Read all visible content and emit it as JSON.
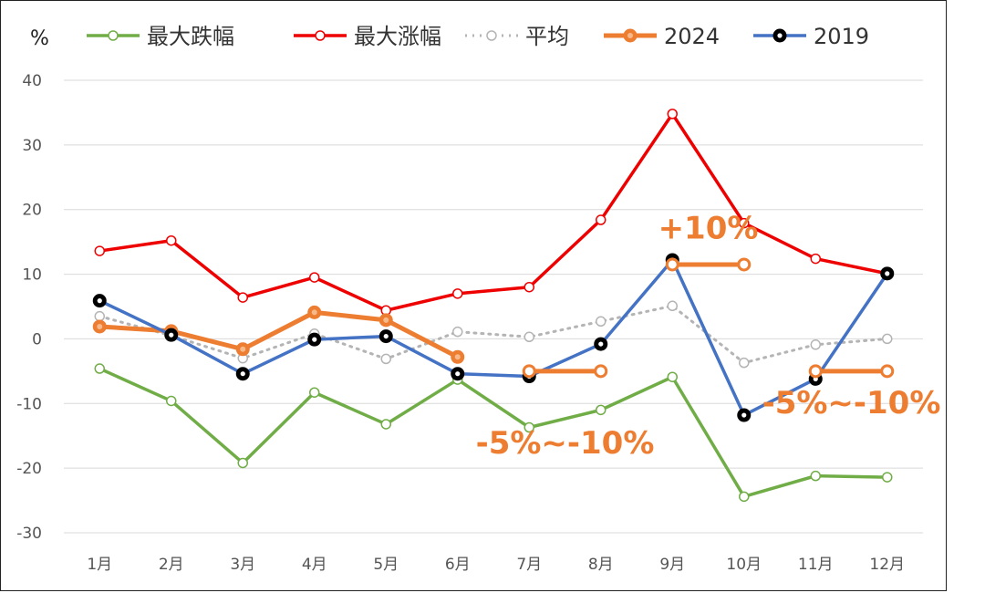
{
  "chart_data": {
    "type": "line",
    "unit_label": "%",
    "categories": [
      "1月",
      "2月",
      "3月",
      "4月",
      "5月",
      "6月",
      "7月",
      "8月",
      "9月",
      "10月",
      "11月",
      "12月"
    ],
    "ylim": [
      -30,
      40
    ],
    "yticks": [
      40,
      30,
      20,
      10,
      0,
      -10,
      -20,
      -30
    ],
    "grid": true,
    "legend_position": "top",
    "series": [
      {
        "name": "最大跌幅",
        "color": "#70AD47",
        "style": "solid",
        "marker": "hollow",
        "values": [
          -4.6,
          -9.6,
          -19.2,
          -8.3,
          -13.2,
          -6.3,
          -13.7,
          -11.0,
          -5.9,
          -24.4,
          -21.2,
          -21.4
        ]
      },
      {
        "name": "最大涨幅",
        "color": "#EE0000",
        "style": "solid",
        "marker": "hollow",
        "values": [
          13.6,
          15.2,
          6.4,
          9.5,
          4.4,
          7.0,
          8.0,
          18.4,
          34.8,
          17.9,
          12.4,
          10.1
        ]
      },
      {
        "name": "平均",
        "color": "#B4B4B4",
        "style": "dotted",
        "marker": "hollow",
        "values": [
          3.5,
          0.5,
          -3.0,
          0.8,
          -3.1,
          1.1,
          0.3,
          2.7,
          5.1,
          -3.7,
          -0.9,
          0.0
        ]
      },
      {
        "name": "2024",
        "color": "#ED7D31",
        "style": "solid",
        "marker": "orange",
        "values": [
          1.9,
          1.2,
          -1.6,
          4.1,
          2.9,
          -2.8,
          null,
          null,
          null,
          null,
          null,
          null
        ]
      },
      {
        "name": "2019",
        "color": "#4472C4",
        "style": "solid",
        "marker": "black",
        "values": [
          5.9,
          0.6,
          -5.4,
          -0.1,
          0.4,
          -5.4,
          -5.8,
          -0.8,
          12.2,
          -11.8,
          -6.2,
          10.1
        ]
      }
    ],
    "forecast_segments": [
      {
        "from": 6,
        "to": 7,
        "value": -5.0
      },
      {
        "from": 8,
        "to": 9,
        "value": 11.5
      },
      {
        "from": 10,
        "to": 11,
        "value": -5.0
      }
    ],
    "annotations": [
      {
        "text": "+10%",
        "x": 8.5,
        "y": 15.5
      },
      {
        "text": "-5%~-10%",
        "x": 6.5,
        "y": -17.7
      },
      {
        "text": "-5%~-10%",
        "x": 10.5,
        "y": -11.5
      }
    ]
  }
}
